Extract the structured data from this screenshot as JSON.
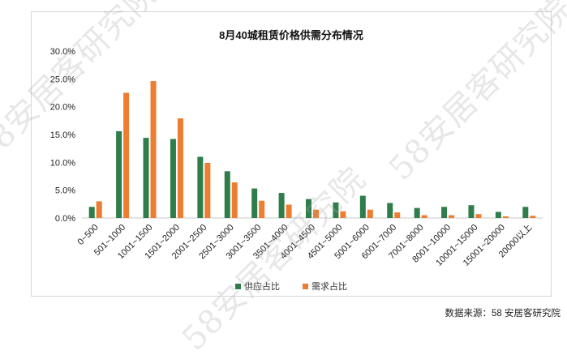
{
  "watermark": "58安居客研究院",
  "source_note": "数据来源：58 安居客研究院",
  "colors": {
    "supply": "#2e7d4a",
    "demand": "#ed7d31",
    "grid": "#e4e4e4",
    "axis": "#c8c8c8"
  },
  "chart_data": {
    "type": "bar",
    "title": "8月40城租赁价格供需分布情况",
    "categories": [
      "0~500",
      "501~1000",
      "1001~1500",
      "1501~2000",
      "2001~2500",
      "2501~3000",
      "3001~3500",
      "3501~4000",
      "4001~4500",
      "4501~5000",
      "5001~6000",
      "6001~7000",
      "7001~8000",
      "8001~10000",
      "10001~15000",
      "15001~20000",
      "20000以上"
    ],
    "series": [
      {
        "name": "供应占比",
        "values": [
          2.0,
          15.6,
          14.4,
          14.2,
          11.0,
          8.4,
          5.3,
          4.5,
          3.4,
          2.8,
          4.0,
          2.7,
          1.8,
          2.0,
          2.3,
          1.1,
          2.0
        ]
      },
      {
        "name": "需求占比",
        "values": [
          3.0,
          22.5,
          24.6,
          17.9,
          9.9,
          6.4,
          3.1,
          2.4,
          1.5,
          1.2,
          1.5,
          1.0,
          0.5,
          0.5,
          0.7,
          0.3,
          0.4
        ]
      }
    ],
    "y_ticks": [
      "0.0%",
      "5.0%",
      "10.0%",
      "15.0%",
      "20.0%",
      "25.0%",
      "30.0%"
    ],
    "ylim": [
      0,
      30
    ],
    "legend_position": "bottom",
    "grid": false
  }
}
